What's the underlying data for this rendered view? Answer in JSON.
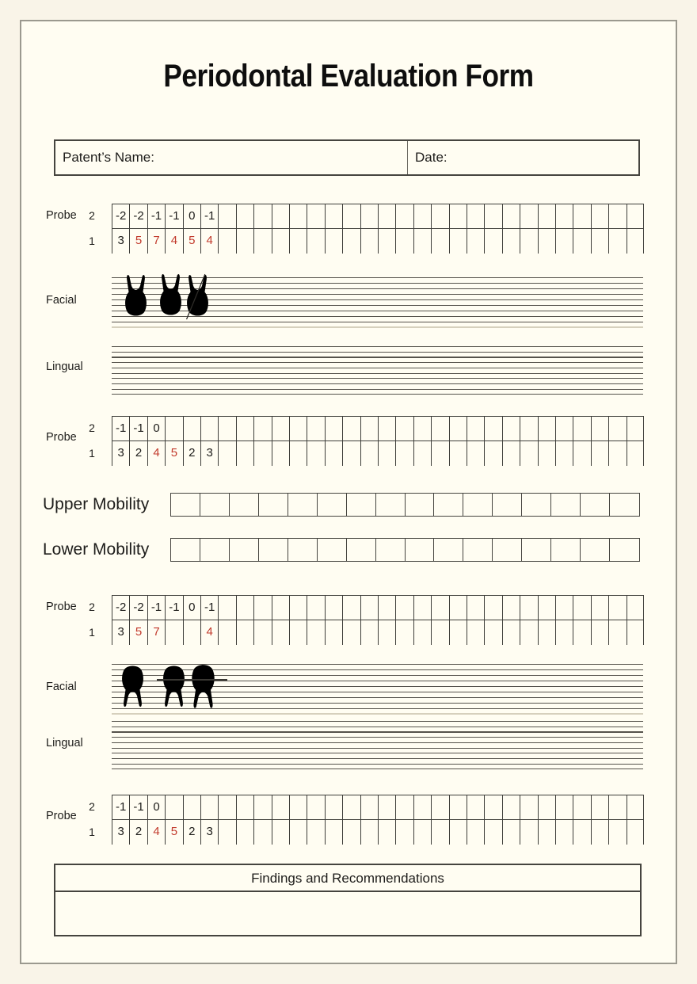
{
  "header": {
    "title": "Periodontal Evaluation Form"
  },
  "patient_bar": {
    "name_label": "Patent’s Name:",
    "name_value": "",
    "date_label": "Date:",
    "date_value": ""
  },
  "upper_chart": {
    "probe_top": {
      "label": "Probe",
      "row_labels": [
        "2",
        "1"
      ],
      "columns": 30,
      "rows": [
        {
          "cells": [
            {
              "t": "-2"
            },
            {
              "t": "-2"
            },
            {
              "t": "-1"
            },
            {
              "t": "-1"
            },
            {
              "t": "0"
            },
            {
              "t": "-1"
            }
          ]
        },
        {
          "cells": [
            {
              "t": "3"
            },
            {
              "t": "5",
              "red": true
            },
            {
              "t": "7",
              "red": true
            },
            {
              "t": "4",
              "red": true
            },
            {
              "t": "5",
              "red": true
            },
            {
              "t": "4",
              "red": true
            }
          ]
        }
      ]
    },
    "facial_label": "Facial",
    "lingual_label": "Lingual",
    "probe_bottom": {
      "label": "Probe",
      "row_labels": [
        "2",
        "1"
      ],
      "columns": 30,
      "rows": [
        {
          "cells": [
            {
              "t": "-1"
            },
            {
              "t": "-1"
            },
            {
              "t": "0"
            }
          ]
        },
        {
          "cells": [
            {
              "t": "3"
            },
            {
              "t": "2"
            },
            {
              "t": "4",
              "red": true
            },
            {
              "t": "5",
              "red": true
            },
            {
              "t": "2"
            },
            {
              "t": "3"
            }
          ]
        }
      ]
    }
  },
  "mobility": {
    "upper_label": "Upper Mobility",
    "lower_label": "Lower Mobility",
    "cells": 16
  },
  "lower_chart": {
    "probe_top": {
      "label": "Probe",
      "row_labels": [
        "2",
        "1"
      ],
      "columns": 30,
      "rows": [
        {
          "cells": [
            {
              "t": "-2"
            },
            {
              "t": "-2"
            },
            {
              "t": "-1"
            },
            {
              "t": "-1"
            },
            {
              "t": "0"
            },
            {
              "t": "-1"
            }
          ]
        },
        {
          "cells": [
            {
              "t": "3"
            },
            {
              "t": "5",
              "red": true
            },
            {
              "t": "7",
              "red": true
            },
            {
              "t": ""
            },
            {
              "t": ""
            },
            {
              "t": "4",
              "red": true
            }
          ]
        }
      ]
    },
    "facial_label": "Facial",
    "lingual_label": "Lingual",
    "probe_bottom": {
      "label": "Probe",
      "row_labels": [
        "2",
        "1"
      ],
      "columns": 30,
      "rows": [
        {
          "cells": [
            {
              "t": "-1"
            },
            {
              "t": "-1"
            },
            {
              "t": "0"
            }
          ]
        },
        {
          "cells": [
            {
              "t": "3"
            },
            {
              "t": "2"
            },
            {
              "t": "4",
              "red": true
            },
            {
              "t": "5",
              "red": true
            },
            {
              "t": "2"
            },
            {
              "t": "3"
            }
          ]
        }
      ]
    }
  },
  "findings": {
    "title": "Findings and Recommendations",
    "content": ""
  },
  "colors": {
    "red": "#c23a2c",
    "ink": "#1d1c1a",
    "line": "#3e3e3a",
    "bg": "#f9f4e8",
    "paper": "#fffdf2",
    "frame": "#9b998f",
    "rule": "#55524b",
    "rule_light": "#d6d0bd"
  }
}
